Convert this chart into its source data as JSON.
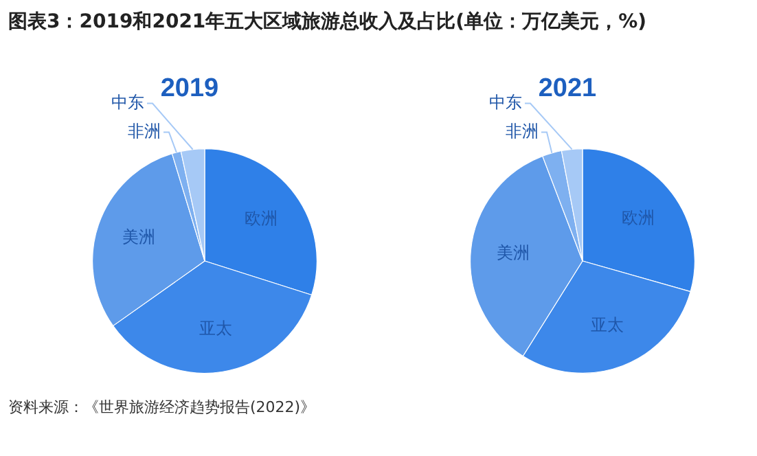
{
  "chart_data": [
    {
      "type": "pie",
      "title": "图表3：2019和2021年五大区域旅游总收入及占比(单位：万亿美元，%)",
      "subtitle": "2019",
      "categories": [
        "欧洲",
        "亚太",
        "美洲",
        "非洲",
        "中东"
      ],
      "values": [
        29.9,
        35.3,
        30.1,
        1.3,
        3.4
      ],
      "colors": [
        "#2f80e8",
        "#3d88ea",
        "#5e9bea",
        "#7eb0f0",
        "#a6c9f6"
      ],
      "legend": false,
      "annotations": [
        "资料来源：《世界旅游经济趋势报告(2022)》"
      ]
    },
    {
      "type": "pie",
      "subtitle": "2021",
      "categories": [
        "欧洲",
        "亚太",
        "美洲",
        "非洲",
        "中东"
      ],
      "values": [
        29.4,
        29.5,
        35.3,
        2.8,
        3.0
      ],
      "colors": [
        "#2f80e8",
        "#3d88ea",
        "#5e9bea",
        "#7eb0f0",
        "#a6c9f6"
      ],
      "legend": false
    }
  ]
}
